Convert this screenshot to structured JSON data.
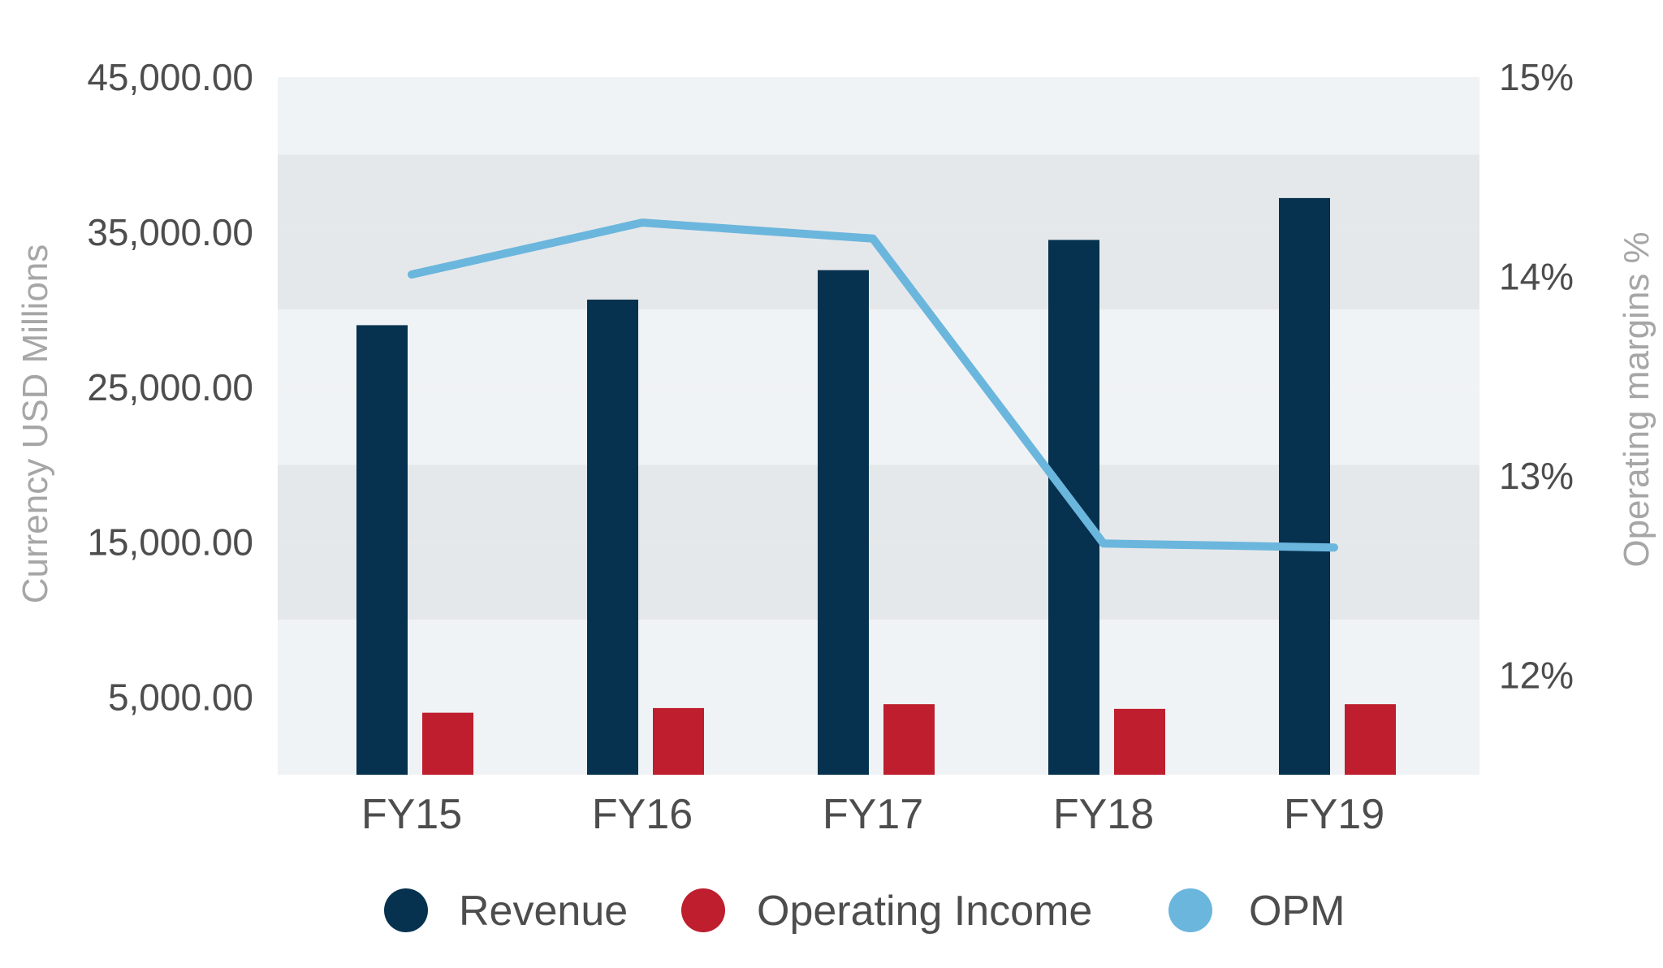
{
  "chart_data": {
    "type": "bar",
    "categories": [
      "FY15",
      "FY16",
      "FY17",
      "FY18",
      "FY19"
    ],
    "series": [
      {
        "name": "Revenue",
        "type": "bar",
        "axis": "left",
        "color": "#06324f",
        "values": [
          29000,
          30650,
          32550,
          34500,
          37200
        ]
      },
      {
        "name": "Operating Income",
        "type": "bar",
        "axis": "left",
        "color": "#be1e2d",
        "values": [
          4000,
          4300,
          4550,
          4250,
          4550
        ]
      },
      {
        "name": "OPM",
        "type": "line",
        "axis": "right",
        "color": "#6bb6dd",
        "values": [
          14.01,
          14.27,
          14.19,
          12.66,
          12.64
        ]
      }
    ],
    "ylabel": "Currency USD Millions",
    "y2label": "Operating margins %",
    "ylim": [
      0,
      45000
    ],
    "y2lim": [
      11.5,
      15
    ],
    "yticks": [
      5000,
      15000,
      25000,
      35000,
      45000
    ],
    "ytick_labels": [
      "5,000.00",
      "15,000.00",
      "25,000.00",
      "35,000.00",
      "45,000.00"
    ],
    "y2ticks": [
      12,
      13,
      14,
      15
    ],
    "y2tick_labels": [
      "12%",
      "13%",
      "14%",
      "15%"
    ],
    "legend": [
      "Revenue",
      "Operating Income",
      "OPM"
    ],
    "legend_position": "bottom",
    "grid": "alternating horizontal bands",
    "band_colors": [
      "#f0f3f5",
      "#e5e8ea"
    ]
  }
}
